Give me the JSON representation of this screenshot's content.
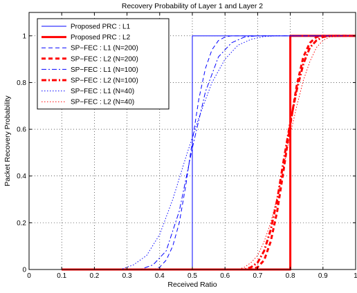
{
  "chart_data": {
    "type": "line",
    "title": "Recovery Probability of Layer 1 and Layer 2",
    "xlabel": "Received Ratio",
    "ylabel": "Packet Recovery Probability",
    "xlim": [
      0,
      1
    ],
    "ylim": [
      0,
      1.1
    ],
    "xticks": [
      "0",
      "0.1",
      "0.2",
      "0.3",
      "0.4",
      "0.5",
      "0.6",
      "0.7",
      "0.8",
      "0.9",
      "1"
    ],
    "yticks": [
      "0",
      "0.2",
      "0.4",
      "0.6",
      "0.8",
      "1"
    ],
    "grid": true,
    "legend_position": "top-left",
    "series": [
      {
        "name": "Proposed PRC : L1",
        "color": "#0000ff",
        "style": "solid",
        "width": 1,
        "x": [
          0.1,
          0.499,
          0.5,
          0.5,
          1.0
        ],
        "y": [
          0,
          0,
          0,
          1,
          1
        ]
      },
      {
        "name": "Proposed PRC : L2",
        "color": "#ff0000",
        "style": "solid",
        "width": 3,
        "x": [
          0.1,
          0.799,
          0.8,
          0.8,
          1.0
        ],
        "y": [
          0,
          0,
          0,
          1,
          1
        ]
      },
      {
        "name": "SP−FEC : L1 (N=200)",
        "color": "#0000ff",
        "style": "dashed",
        "width": 1,
        "x": [
          0.1,
          0.38,
          0.4,
          0.42,
          0.44,
          0.46,
          0.48,
          0.5,
          0.52,
          0.54,
          0.56,
          0.58,
          0.6,
          0.62,
          1.0
        ],
        "y": [
          0,
          0,
          0.01,
          0.04,
          0.1,
          0.2,
          0.36,
          0.55,
          0.73,
          0.86,
          0.94,
          0.98,
          0.995,
          1,
          1
        ]
      },
      {
        "name": "SP−FEC : L2 (N=200)",
        "color": "#ff0000",
        "style": "dashed",
        "width": 3,
        "x": [
          0.1,
          0.68,
          0.7,
          0.72,
          0.74,
          0.76,
          0.78,
          0.8,
          0.82,
          0.84,
          0.86,
          0.88,
          0.9,
          1.0
        ],
        "y": [
          0,
          0,
          0.01,
          0.04,
          0.12,
          0.25,
          0.43,
          0.62,
          0.79,
          0.91,
          0.97,
          0.995,
          1,
          1
        ]
      },
      {
        "name": "SP−FEC : L1 (N=100)",
        "color": "#0000ff",
        "style": "dashdot",
        "width": 1,
        "x": [
          0.1,
          0.34,
          0.38,
          0.42,
          0.46,
          0.5,
          0.54,
          0.58,
          0.62,
          0.66,
          0.7,
          1.0
        ],
        "y": [
          0,
          0,
          0.02,
          0.08,
          0.25,
          0.52,
          0.76,
          0.91,
          0.97,
          0.995,
          1,
          1
        ]
      },
      {
        "name": "SP−FEC : L2 (N=100)",
        "color": "#ff0000",
        "style": "dashdot",
        "width": 3,
        "x": [
          0.1,
          0.66,
          0.68,
          0.7,
          0.72,
          0.74,
          0.76,
          0.78,
          0.8,
          0.82,
          0.84,
          0.86,
          0.88,
          0.9,
          0.92,
          1.0
        ],
        "y": [
          0,
          0,
          0.01,
          0.03,
          0.08,
          0.17,
          0.3,
          0.47,
          0.63,
          0.77,
          0.88,
          0.95,
          0.98,
          0.995,
          1,
          1
        ]
      },
      {
        "name": "SP−FEC : L1 (N=40)",
        "color": "#0000ff",
        "style": "dotted",
        "width": 1,
        "x": [
          0.1,
          0.28,
          0.32,
          0.36,
          0.4,
          0.44,
          0.48,
          0.52,
          0.56,
          0.6,
          0.64,
          0.68,
          0.72,
          0.76,
          1.0
        ],
        "y": [
          0,
          0,
          0.02,
          0.06,
          0.15,
          0.3,
          0.48,
          0.65,
          0.8,
          0.9,
          0.96,
          0.985,
          0.997,
          1,
          1
        ]
      },
      {
        "name": "SP−FEC : L2 (N=40)",
        "color": "#ff0000",
        "style": "dotted",
        "width": 1,
        "x": [
          0.1,
          0.64,
          0.66,
          0.68,
          0.7,
          0.72,
          0.74,
          0.76,
          0.78,
          0.8,
          0.82,
          0.84,
          0.86,
          0.88,
          0.9,
          0.92,
          1.0
        ],
        "y": [
          0,
          0,
          0.01,
          0.03,
          0.06,
          0.12,
          0.2,
          0.31,
          0.44,
          0.58,
          0.7,
          0.81,
          0.89,
          0.95,
          0.98,
          0.995,
          1
        ]
      }
    ]
  }
}
